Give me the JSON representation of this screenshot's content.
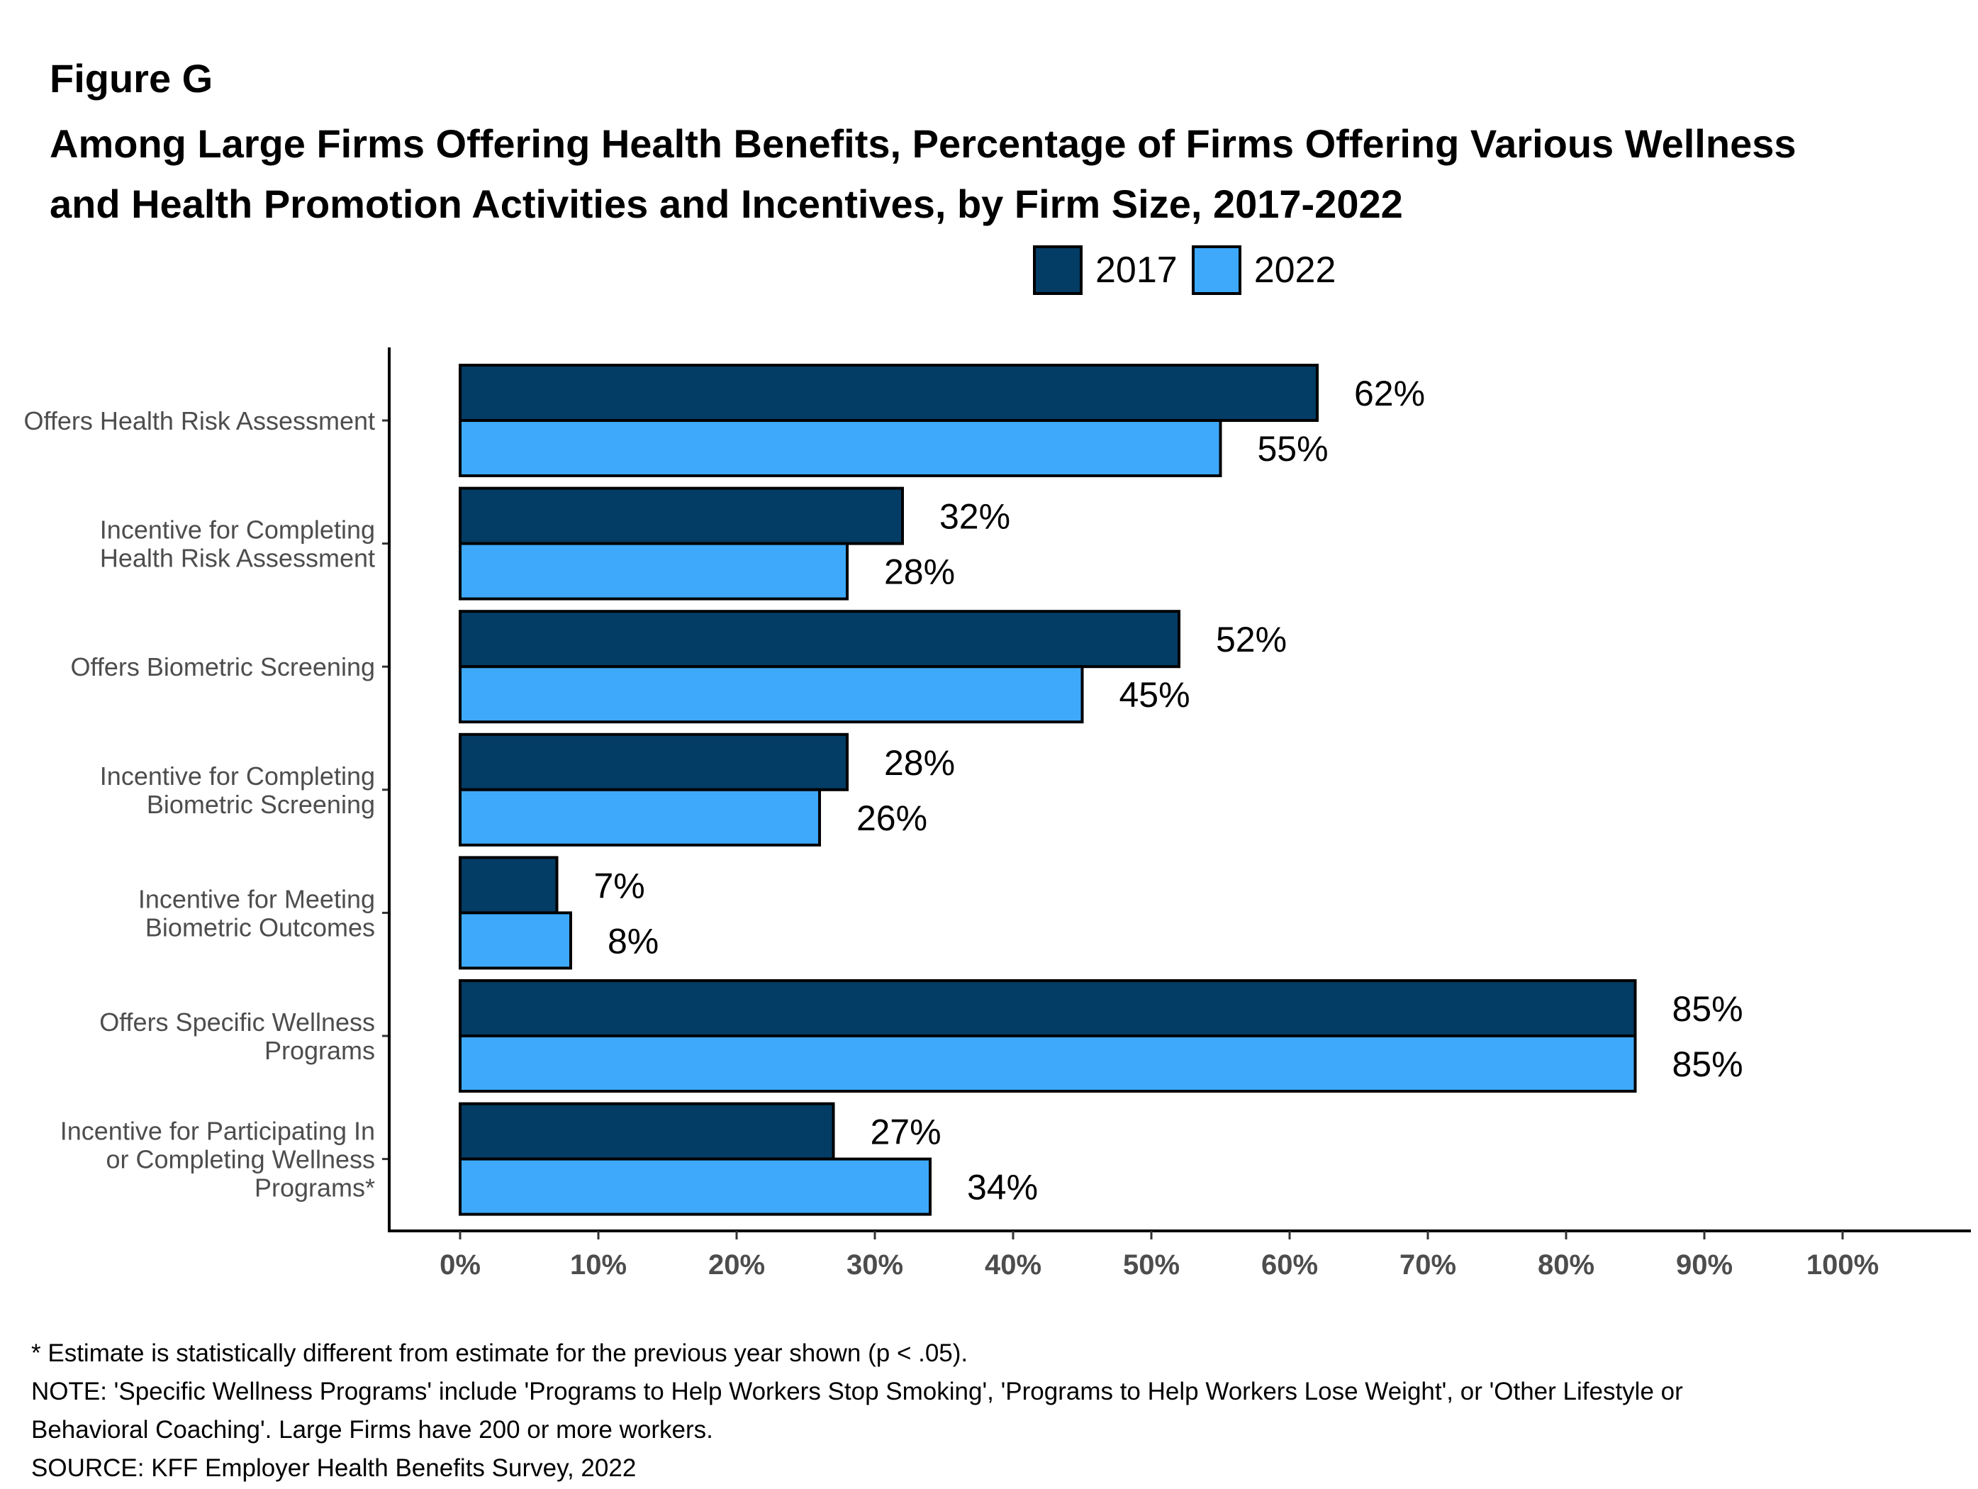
{
  "figure_label": "Figure G",
  "title_lines": [
    "Among Large Firms Offering Health Benefits, Percentage of Firms Offering Various Wellness",
    "and Health Promotion Activities and Incentives, by Firm Size, 2017-2022"
  ],
  "colors": {
    "y2017": "#033c64",
    "y2022": "#3ea9fb",
    "axis_text": "#4d4d4d"
  },
  "footer": [
    "* Estimate is statistically different from estimate for the previous year shown (p < .05).",
    "NOTE: 'Specific Wellness Programs' include 'Programs to Help Workers Stop Smoking', 'Programs to Help Workers Lose Weight', or 'Other Lifestyle or",
    "Behavioral Coaching'. Large Firms have 200 or more workers.",
    "SOURCE: KFF Employer Health Benefits Survey, 2022"
  ],
  "chart_data": {
    "type": "bar",
    "orientation": "horizontal",
    "title": "Among Large Firms Offering Health Benefits, Percentage of Firms Offering Various Wellness and Health Promotion Activities and Incentives, by Firm Size, 2017-2022",
    "xlabel": "",
    "ylabel": "",
    "xlim": [
      0,
      100
    ],
    "x_ticks": [
      "0%",
      "10%",
      "20%",
      "30%",
      "40%",
      "50%",
      "60%",
      "70%",
      "80%",
      "90%",
      "100%"
    ],
    "grid": false,
    "legend_position": "top",
    "categories": [
      [
        "Offers Health Risk Assessment"
      ],
      [
        "Incentive for Completing",
        "Health Risk Assessment"
      ],
      [
        "Offers Biometric Screening"
      ],
      [
        "Incentive for Completing",
        "Biometric Screening"
      ],
      [
        "Incentive for Meeting",
        "Biometric Outcomes"
      ],
      [
        "Offers Specific Wellness",
        "Programs"
      ],
      [
        "Incentive for Participating In",
        "or Completing Wellness",
        "Programs*"
      ]
    ],
    "series": [
      {
        "name": "2017",
        "values": [
          62,
          32,
          52,
          28,
          7,
          85,
          27
        ],
        "labels": [
          "62%",
          "32%",
          "52%",
          "28%",
          "7%",
          "85%",
          "27%"
        ]
      },
      {
        "name": "2022",
        "values": [
          55,
          28,
          45,
          26,
          8,
          85,
          34
        ],
        "labels": [
          "55%",
          "28%",
          "45%",
          "26%",
          "8%",
          "85%",
          "34%"
        ]
      }
    ]
  }
}
